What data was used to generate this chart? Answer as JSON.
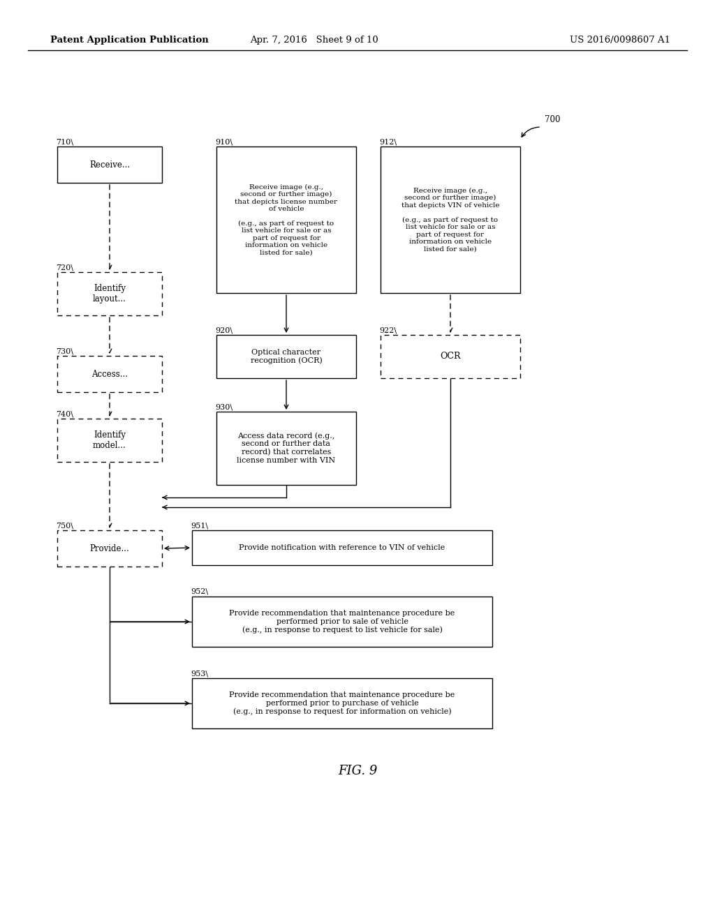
{
  "bg_color": "#ffffff",
  "header_left": "Patent Application Publication",
  "header_mid": "Apr. 7, 2016   Sheet 9 of 10",
  "header_right": "US 2016/0098607 A1",
  "figure_label": "FIG. 9"
}
